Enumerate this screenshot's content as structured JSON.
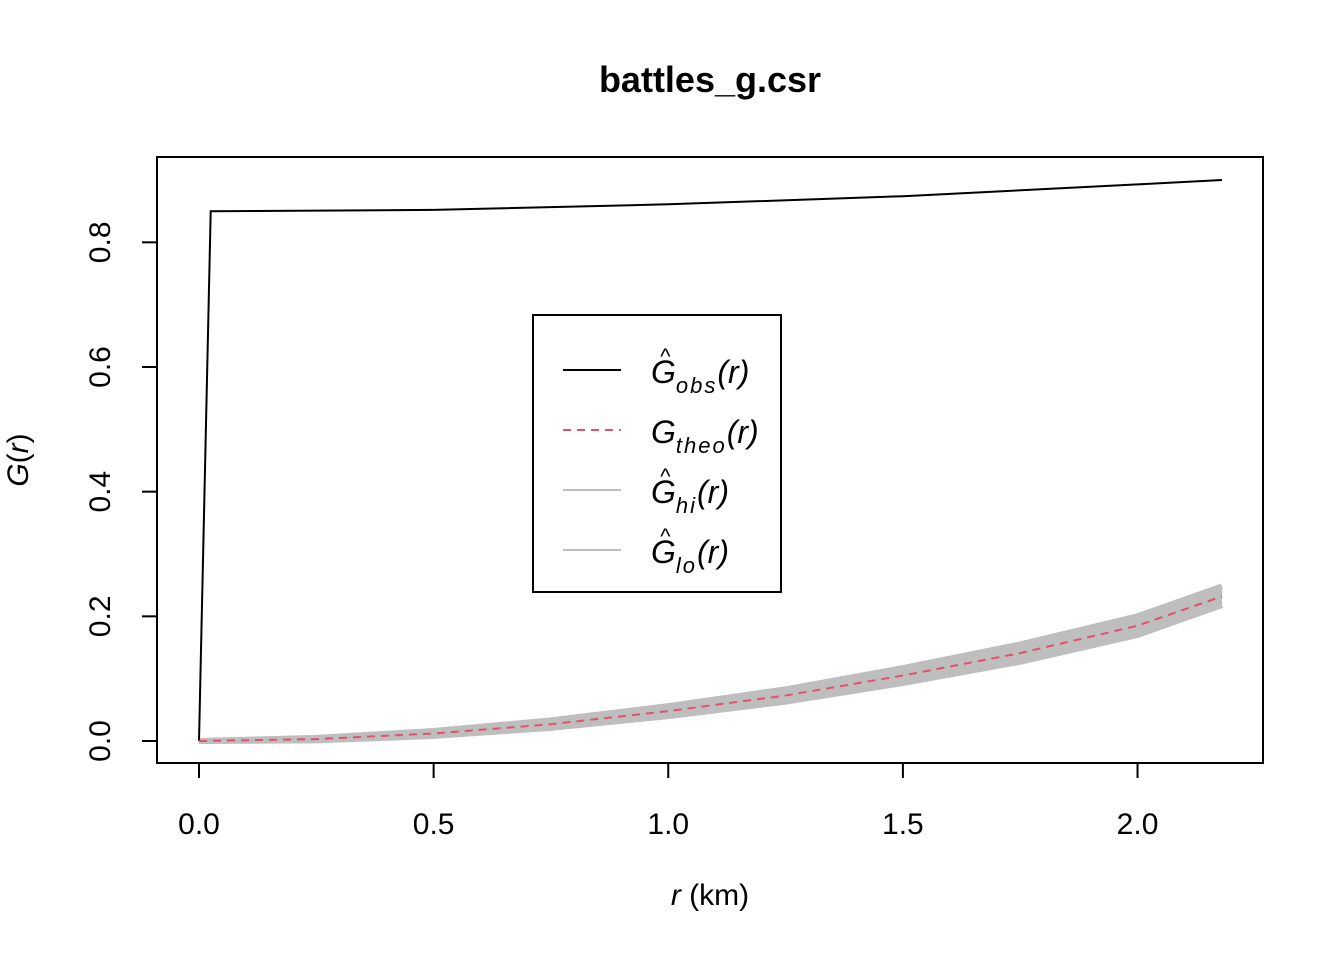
{
  "chart_data": {
    "type": "line",
    "title": "battles_g.csr",
    "xlabel": {
      "var": "r",
      "unit": " (km)"
    },
    "ylabel": {
      "fn": "G",
      "open": "(",
      "var": "r",
      "close": ")"
    },
    "xlim": [
      0.0,
      2.18
    ],
    "ylim": [
      0.0,
      0.9
    ],
    "x_ticks": [
      "0.0",
      "0.5",
      "1.0",
      "1.5",
      "2.0"
    ],
    "y_ticks": [
      "0.0",
      "0.2",
      "0.4",
      "0.6",
      "0.8"
    ],
    "grid": false,
    "legend_position": "center",
    "colors": {
      "obs": "#000000",
      "theo": "#DF536B",
      "envelope": "#BEBEBE"
    },
    "series": [
      {
        "key": "obs",
        "name": {
          "hat": "^",
          "base": "G",
          "sub": "obs",
          "arg": "(r)"
        },
        "style": "solid",
        "x": [
          0.0,
          0.025,
          0.5,
          1.0,
          1.5,
          2.0,
          2.18
        ],
        "y": [
          0.0,
          0.85,
          0.852,
          0.861,
          0.874,
          0.893,
          0.9
        ]
      },
      {
        "key": "theo",
        "name": {
          "hat": "",
          "base": "G",
          "sub": "theo",
          "arg": "(r)"
        },
        "style": "dashed",
        "x": [
          0.0,
          0.25,
          0.5,
          0.75,
          1.0,
          1.25,
          1.5,
          1.75,
          2.0,
          2.18
        ],
        "y": [
          0.0,
          0.003,
          0.012,
          0.027,
          0.048,
          0.073,
          0.105,
          0.141,
          0.185,
          0.232
        ]
      },
      {
        "key": "hi",
        "name": {
          "hat": "^",
          "base": "G",
          "sub": "hi",
          "arg": "(r)"
        },
        "style": "envelope",
        "x": [
          0.0,
          0.25,
          0.5,
          0.75,
          1.0,
          1.25,
          1.5,
          1.75,
          2.0,
          2.18
        ],
        "y": [
          0.0,
          0.005,
          0.016,
          0.033,
          0.056,
          0.083,
          0.117,
          0.155,
          0.2,
          0.248
        ]
      },
      {
        "key": "lo",
        "name": {
          "hat": "^",
          "base": "G",
          "sub": "lo",
          "arg": "(r)"
        },
        "style": "envelope",
        "x": [
          0.0,
          0.25,
          0.5,
          0.75,
          1.0,
          1.25,
          1.5,
          1.75,
          2.0,
          2.18
        ],
        "y": [
          0.0,
          0.001,
          0.008,
          0.021,
          0.04,
          0.063,
          0.093,
          0.127,
          0.17,
          0.218
        ]
      }
    ]
  }
}
